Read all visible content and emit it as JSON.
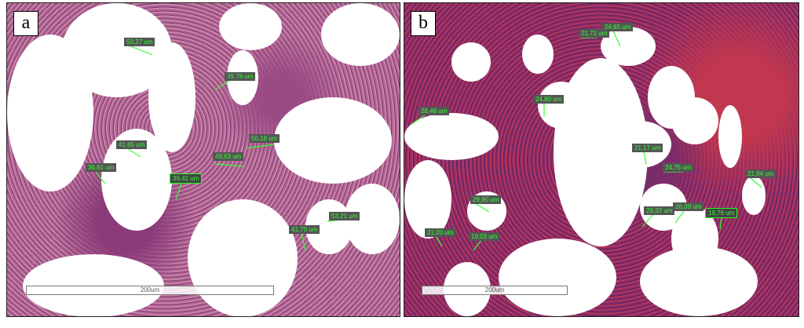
{
  "panels": [
    {
      "letter": "a",
      "scale_bar": "200um",
      "measurements": [
        "50,27 um",
        "39,79 um",
        "41,65 um",
        "36,81 um",
        "39,41 um",
        "49,63 um",
        "50,18 um",
        "53,21 um",
        "41,70 um"
      ]
    },
    {
      "letter": "b",
      "scale_bar": "200um",
      "measurements": [
        "24,65 um",
        "21,71 um",
        "28,48 um",
        "24,80 um",
        "21,17 um",
        "24,75 um",
        "21,94 um",
        "29,90 um",
        "29,32 um",
        "26,09 um",
        "19,76 um",
        "21,20 um",
        "19,03 um"
      ]
    }
  ],
  "colors": {
    "label_text": "#33ff33",
    "measure_line": "#33ff33",
    "stain_pink": "#c984a8",
    "nuclei": "#5a2060"
  }
}
